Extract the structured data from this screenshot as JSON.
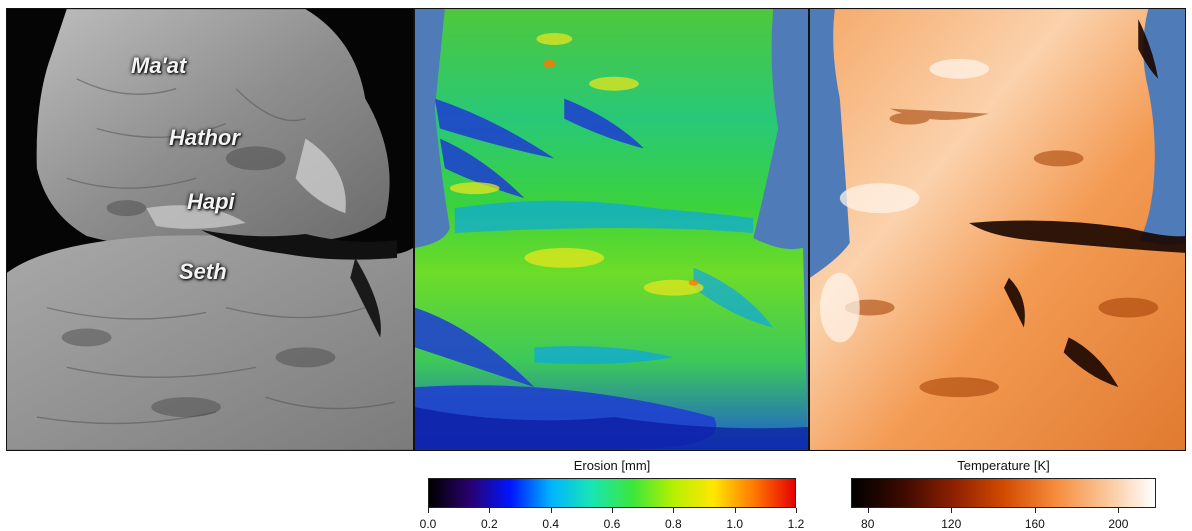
{
  "photo_panel": {
    "labels": [
      "Ma'at",
      "Hathor",
      "Hapi",
      "Seth"
    ]
  },
  "erosion_colorbar": {
    "title": "Erosion [mm]",
    "ticks": [
      "0.0",
      "0.2",
      "0.4",
      "0.6",
      "0.8",
      "1.0",
      "1.2"
    ],
    "range": [
      0.0,
      1.2
    ],
    "colors": [
      "#000000",
      "#2a006e",
      "#0015ff",
      "#00b4ff",
      "#18e6b4",
      "#3ce63c",
      "#b4f000",
      "#ffe600",
      "#ff7800",
      "#e60000"
    ]
  },
  "temperature_colorbar": {
    "title": "Temperature [K]",
    "ticks": [
      "80",
      "120",
      "160",
      "200"
    ],
    "tick_values": [
      80,
      120,
      160,
      200
    ],
    "range": [
      72,
      218
    ],
    "colors": [
      "#000000",
      "#3c0a00",
      "#8c2000",
      "#d24a00",
      "#f58a3a",
      "#fbc496",
      "#ffffff"
    ]
  },
  "colors": {
    "background_blue": "#4f7cb8",
    "photo_background": "#050505"
  }
}
